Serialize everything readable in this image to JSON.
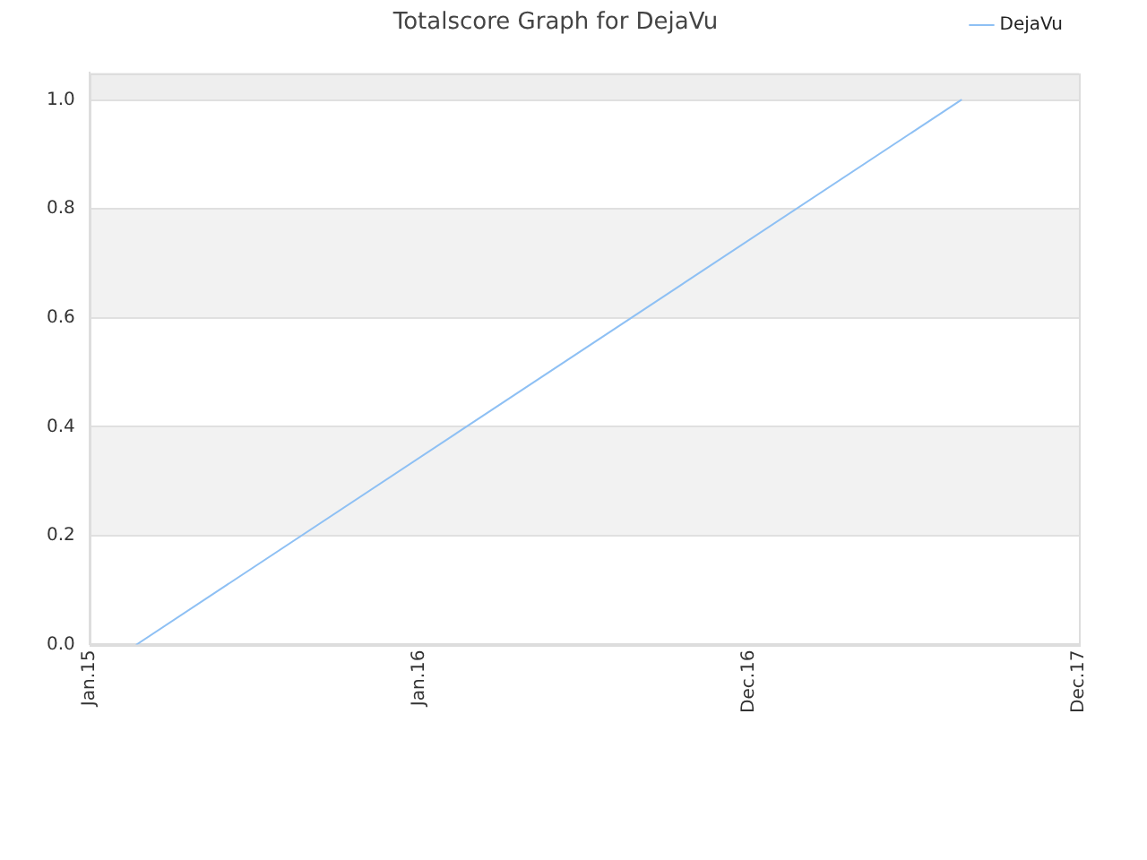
{
  "chart_data": {
    "type": "line",
    "title": "Totalscore Graph for DejaVu",
    "categories": [
      "Jan.15",
      null,
      null,
      null,
      null,
      null,
      null,
      null,
      null,
      null,
      null,
      null,
      null,
      null,
      "Jan.16",
      null,
      null,
      null,
      null,
      null,
      null,
      null,
      null,
      null,
      null,
      null,
      null,
      null,
      "Dec.16",
      null,
      null,
      null,
      null,
      null,
      null,
      null,
      null,
      null,
      null,
      null,
      null,
      null,
      "Dec.17"
    ],
    "series": [
      {
        "name": "DejaVu",
        "color": "#8ec0f4",
        "values": [
          null,
          null,
          0,
          null,
          null,
          null,
          null,
          null,
          null,
          null,
          null,
          null,
          null,
          null,
          null,
          null,
          null,
          null,
          null,
          null,
          null,
          null,
          null,
          null,
          null,
          null,
          null,
          null,
          null,
          null,
          null,
          null,
          null,
          null,
          null,
          null,
          null,
          1,
          null,
          null,
          null,
          null,
          null
        ]
      }
    ],
    "ylim": [
      0,
      1.05
    ],
    "yticks": [
      {
        "value": 0,
        "label": "0.0"
      },
      {
        "value": 0.2,
        "label": "0.2"
      },
      {
        "value": 0.4,
        "label": "0.4"
      },
      {
        "value": 0.6,
        "label": "0.6"
      },
      {
        "value": 0.8,
        "label": "0.8"
      },
      {
        "value": 1,
        "label": "1.0"
      }
    ],
    "bands": [
      {
        "axis": "y",
        "from": 1,
        "to": 1.05,
        "color": "#eeeeee"
      },
      {
        "axis": "y",
        "from": 0.6,
        "to": 0.8,
        "color": "#f2f2f2"
      },
      {
        "axis": "y",
        "from": 0.2,
        "to": 0.4,
        "color": "#f2f2f2"
      }
    ],
    "grid": "y",
    "legend": "top right",
    "marker": "none"
  }
}
